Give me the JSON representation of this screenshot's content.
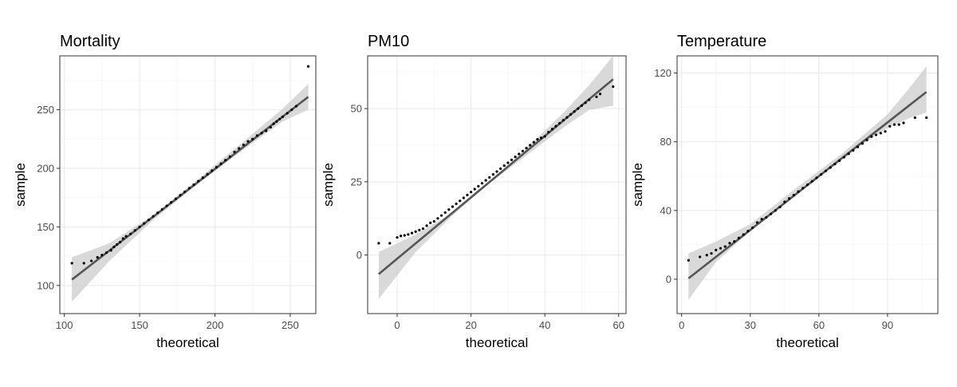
{
  "chart_data": [
    {
      "type": "scatter",
      "title": "Mortality",
      "xlabel": "theoretical",
      "ylabel": "sample",
      "xlim": [
        97,
        267
      ],
      "ylim": [
        76,
        296
      ],
      "xticks": [
        100,
        150,
        200,
        250
      ],
      "yticks": [
        100,
        150,
        200,
        250
      ],
      "grid": true,
      "line": {
        "x": [
          105,
          262
        ],
        "y": [
          105,
          261
        ]
      },
      "band": {
        "x": [
          105,
          130,
          160,
          190,
          220,
          245,
          262
        ],
        "lower": [
          86,
          121,
          157,
          188,
          217,
          240,
          250
        ],
        "upper": [
          124,
          136,
          161,
          192,
          224,
          251,
          272
        ]
      },
      "points": {
        "x": [
          105,
          113,
          118,
          122,
          125,
          128,
          131,
          133,
          135,
          137,
          139,
          141,
          144,
          147,
          150,
          153,
          156,
          159,
          162,
          165,
          168,
          171,
          174,
          177,
          180,
          183,
          186,
          189,
          192,
          195,
          198,
          201,
          204,
          207,
          210,
          213,
          216,
          219,
          222,
          225,
          228,
          231,
          234,
          237,
          239,
          241,
          243,
          245,
          248,
          251,
          254,
          262
        ],
        "y": [
          119,
          119,
          121,
          124,
          126,
          128,
          130,
          133,
          135,
          137,
          140,
          142,
          144,
          147,
          150,
          153,
          156,
          159,
          162,
          165,
          168,
          171,
          174,
          177,
          180,
          183,
          186,
          189,
          192,
          195,
          198,
          201,
          204,
          207,
          210,
          214,
          217,
          220,
          223,
          225,
          228,
          230,
          232,
          235,
          238,
          240,
          242,
          244,
          247,
          250,
          253,
          287
        ]
      }
    },
    {
      "type": "scatter",
      "title": "PM10",
      "xlabel": "theoretical",
      "ylabel": "sample",
      "xlim": [
        -8,
        62
      ],
      "ylim": [
        -20,
        68
      ],
      "xticks": [
        0,
        20,
        40,
        60
      ],
      "yticks": [
        0,
        25,
        50
      ],
      "grid": true,
      "line": {
        "x": [
          -5,
          58.5
        ],
        "y": [
          -6.5,
          60
        ]
      },
      "band": {
        "x": [
          -5,
          5,
          15,
          25,
          35,
          45,
          52,
          58.5
        ],
        "lower": [
          -15,
          1,
          13.5,
          24.5,
          34,
          43.5,
          49.5,
          51
        ],
        "upper": [
          1,
          7,
          14.5,
          25,
          36.5,
          48.5,
          58,
          68
        ]
      },
      "points": {
        "x": [
          -5,
          -2,
          0,
          1,
          2,
          3,
          4,
          5,
          6,
          7,
          8,
          9,
          10,
          11,
          12,
          13,
          14,
          15,
          16,
          17,
          18,
          19,
          20,
          21,
          22,
          23,
          24,
          25,
          26,
          27,
          28,
          29,
          30,
          31,
          32,
          33,
          34,
          35,
          36,
          37,
          38,
          39,
          40,
          41,
          42,
          43,
          44,
          45,
          46,
          47,
          48,
          49,
          50,
          51,
          52,
          54,
          55,
          58.5
        ],
        "y": [
          4,
          4,
          6,
          6.5,
          6.7,
          7,
          7.5,
          8,
          8.5,
          9,
          10,
          11,
          11.5,
          12.5,
          13.5,
          14.5,
          15.5,
          16.5,
          17.5,
          18.5,
          19.5,
          20.5,
          21.5,
          22.5,
          23.5,
          24.5,
          25.5,
          26.5,
          27.5,
          28.5,
          29.5,
          30.5,
          31.5,
          32.5,
          33.5,
          34.5,
          35.5,
          36.5,
          37.5,
          38.5,
          39.5,
          40,
          40.5,
          42,
          43,
          44,
          45,
          46,
          47,
          48,
          49,
          50,
          51,
          52,
          53,
          54,
          55,
          57.5
        ]
      }
    },
    {
      "type": "scatter",
      "title": "Temperature",
      "xlabel": "theoretical",
      "ylabel": "sample",
      "xlim": [
        -2,
        112
      ],
      "ylim": [
        -20,
        130
      ],
      "xticks": [
        0,
        30,
        60,
        90
      ],
      "yticks": [
        0,
        40,
        80,
        120
      ],
      "grid": true,
      "line": {
        "x": [
          3,
          107
        ],
        "y": [
          0.5,
          109
        ]
      },
      "band": {
        "x": [
          3,
          15,
          30,
          50,
          70,
          90,
          100,
          107
        ],
        "lower": [
          -12,
          10,
          28,
          50,
          71,
          88,
          94,
          97
        ],
        "upper": [
          15,
          22,
          32,
          53,
          73,
          96,
          112,
          124
        ]
      },
      "points": {
        "x": [
          3,
          8,
          11,
          13,
          15,
          17,
          19,
          21,
          23,
          25,
          27,
          29,
          31,
          33,
          35,
          37,
          39,
          41,
          43,
          45,
          47,
          49,
          51,
          53,
          55,
          57,
          59,
          61,
          63,
          65,
          67,
          69,
          71,
          73,
          75,
          77,
          79,
          81,
          83,
          85,
          87,
          89,
          91,
          93,
          95,
          97,
          102,
          107
        ],
        "y": [
          11,
          13,
          14,
          15,
          17,
          18,
          19,
          21,
          22,
          24,
          26,
          28,
          30,
          33,
          35,
          36,
          38,
          40,
          42,
          45,
          47,
          49,
          51,
          53,
          55,
          57,
          59,
          61,
          63,
          65,
          67,
          69,
          71,
          73,
          75,
          77,
          79,
          81,
          83,
          84,
          85,
          86,
          89,
          90,
          90,
          91,
          94,
          94
        ]
      }
    }
  ]
}
